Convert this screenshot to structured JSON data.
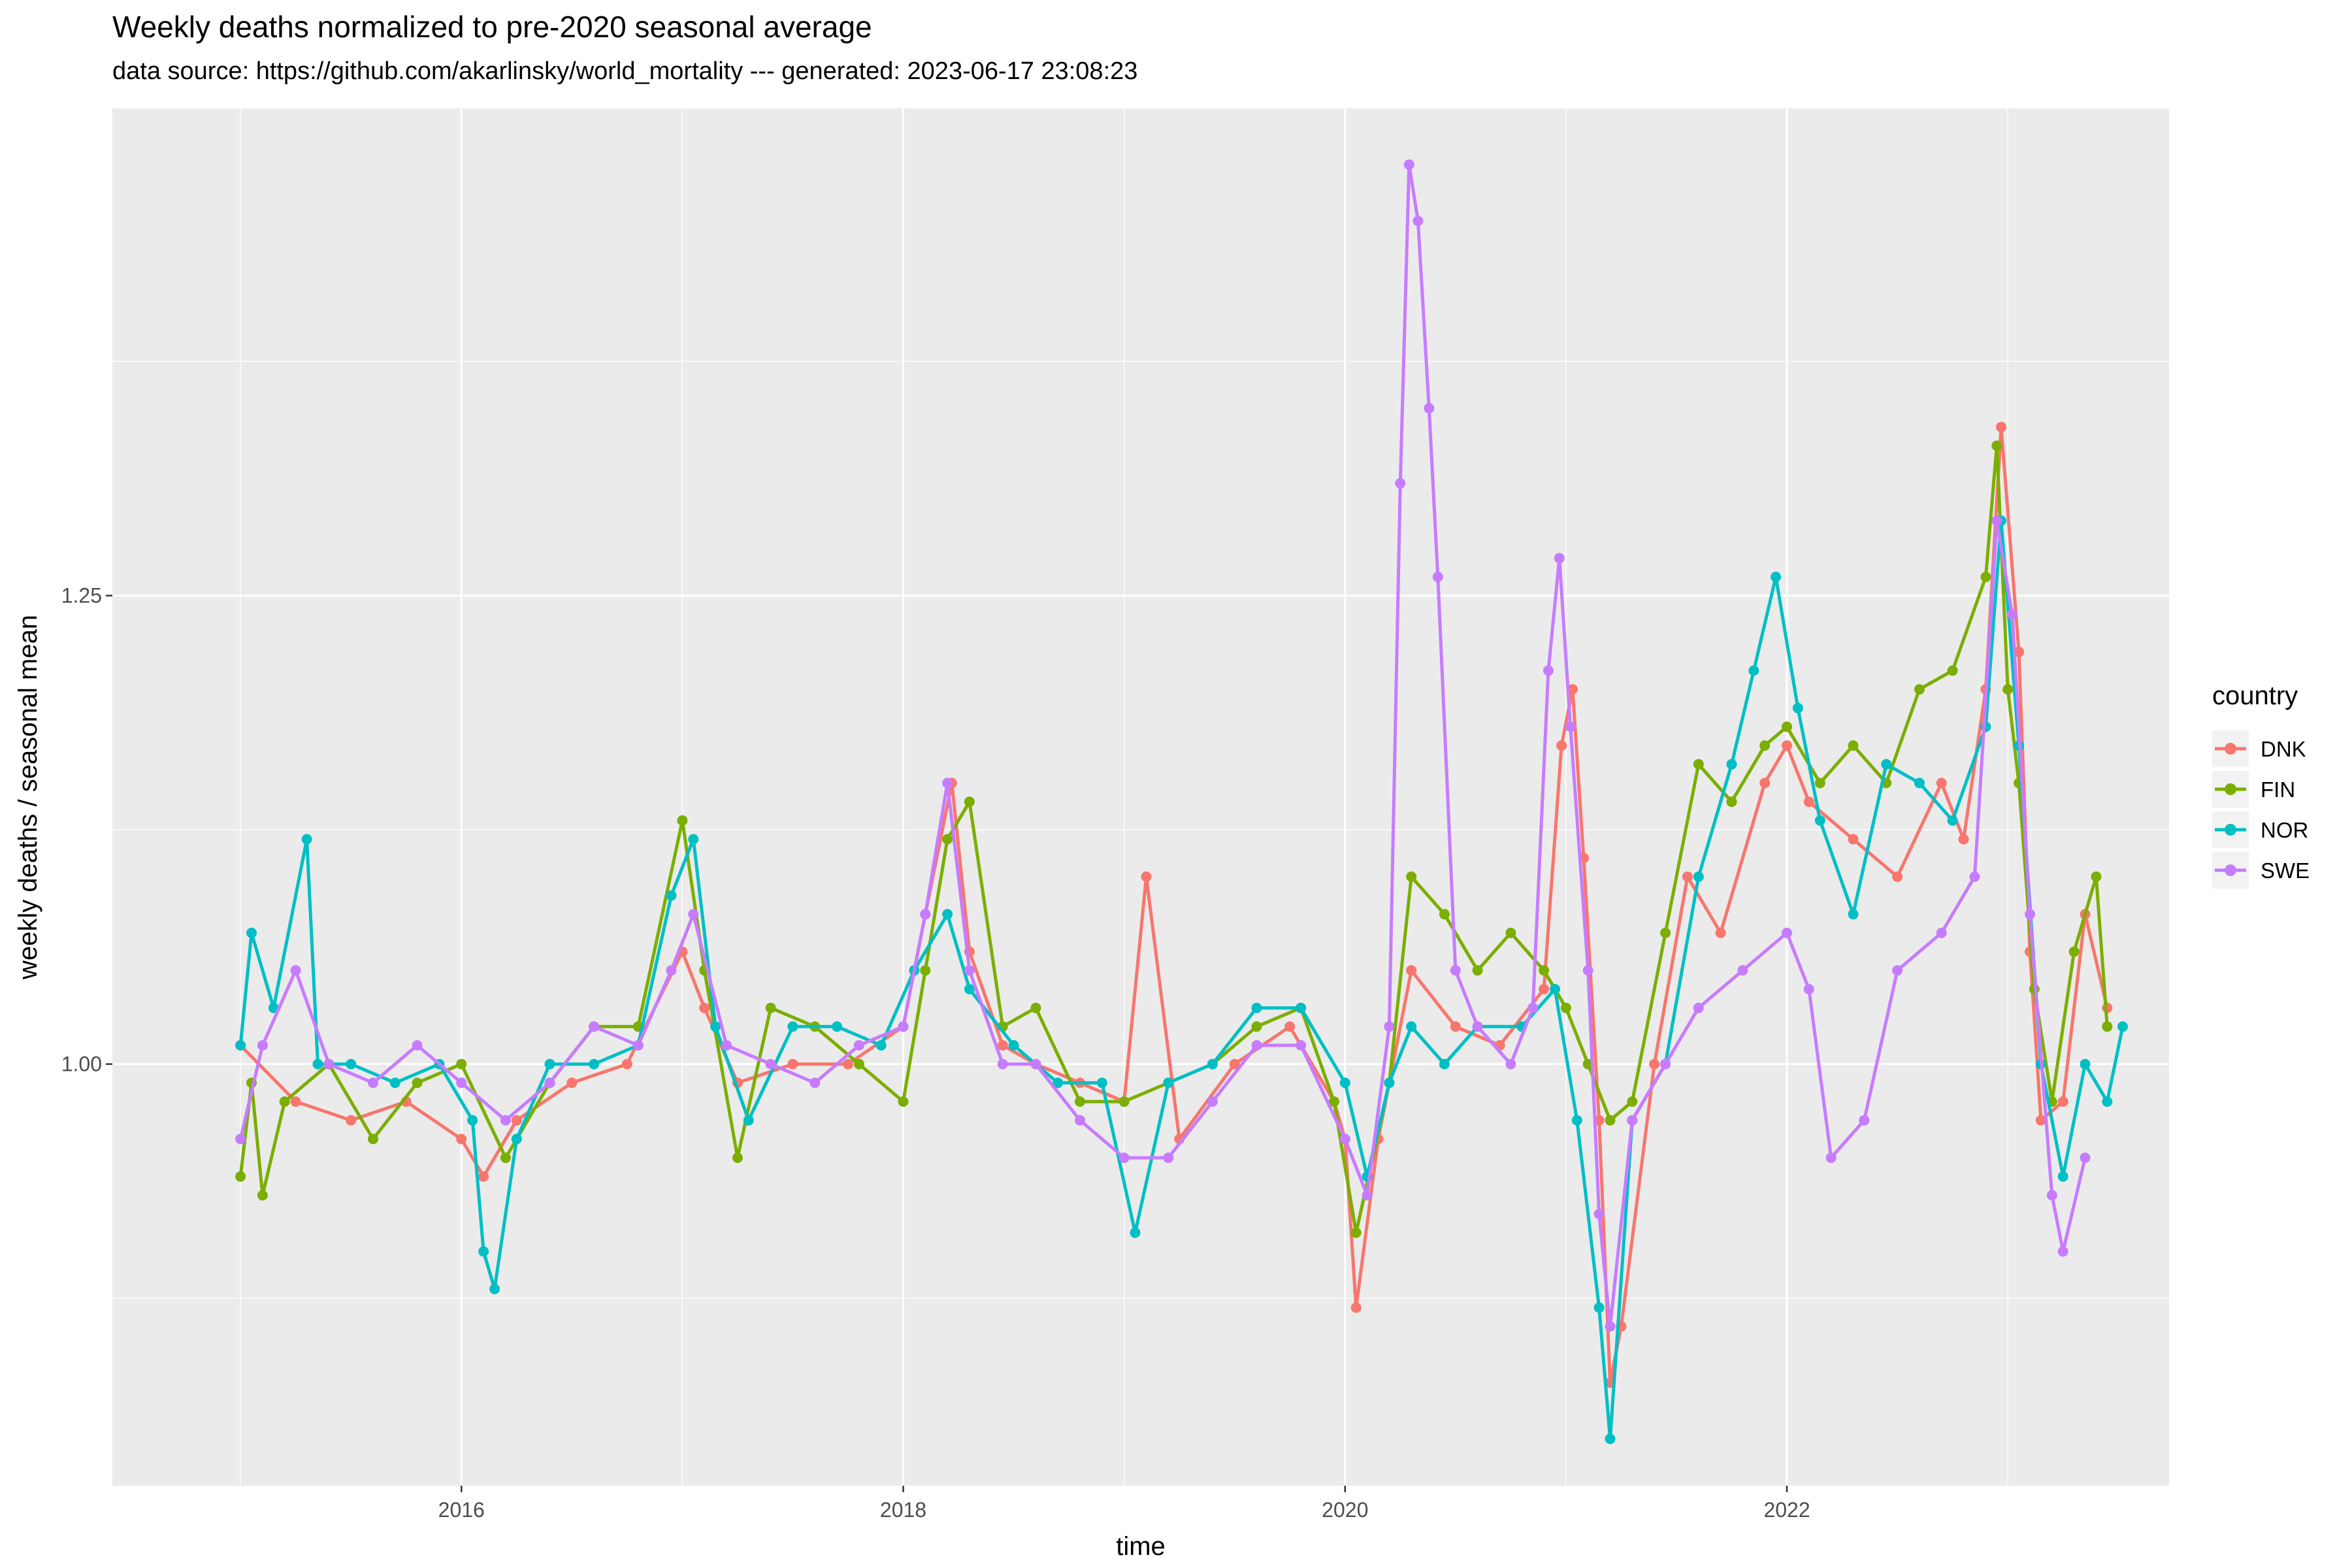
{
  "chart_data": {
    "type": "line",
    "title": "Weekly deaths normalized to pre-2020 seasonal average",
    "subtitle": "data source: https://github.com/akarlinsky/world_mortality --- generated: 2023-06-17 23:08:23",
    "xlabel": "time",
    "ylabel": "weekly deaths / seasonal mean",
    "x_ticks": [
      "2016",
      "2018",
      "2020",
      "2022"
    ],
    "y_ticks": [
      "1.00",
      "1.25"
    ],
    "xlim": [
      2014.42,
      2023.73
    ],
    "ylim": [
      0.775,
      1.51
    ],
    "grid": true,
    "legend": {
      "title": "country",
      "position": "right"
    },
    "colors": {
      "DNK": "#F8766D",
      "FIN": "#7CAE00",
      "NOR": "#00BFC4",
      "SWE": "#C77CFF"
    },
    "series": [
      {
        "name": "DNK",
        "points": [
          [
            2015.0,
            1.01
          ],
          [
            2015.25,
            0.98
          ],
          [
            2015.5,
            0.97
          ],
          [
            2015.75,
            0.98
          ],
          [
            2016.0,
            0.96
          ],
          [
            2016.1,
            0.94
          ],
          [
            2016.25,
            0.97
          ],
          [
            2016.5,
            0.99
          ],
          [
            2016.75,
            1.0
          ],
          [
            2017.0,
            1.06
          ],
          [
            2017.1,
            1.03
          ],
          [
            2017.25,
            0.99
          ],
          [
            2017.5,
            1.0
          ],
          [
            2017.75,
            1.0
          ],
          [
            2018.0,
            1.02
          ],
          [
            2018.1,
            1.08
          ],
          [
            2018.22,
            1.15
          ],
          [
            2018.3,
            1.06
          ],
          [
            2018.45,
            1.01
          ],
          [
            2018.6,
            1.0
          ],
          [
            2018.8,
            0.99
          ],
          [
            2019.0,
            0.98
          ],
          [
            2019.1,
            1.1
          ],
          [
            2019.25,
            0.96
          ],
          [
            2019.5,
            1.0
          ],
          [
            2019.75,
            1.02
          ],
          [
            2019.95,
            0.98
          ],
          [
            2020.0,
            0.96
          ],
          [
            2020.05,
            0.87
          ],
          [
            2020.15,
            0.96
          ],
          [
            2020.3,
            1.05
          ],
          [
            2020.5,
            1.02
          ],
          [
            2020.7,
            1.01
          ],
          [
            2020.9,
            1.04
          ],
          [
            2020.98,
            1.17
          ],
          [
            2021.03,
            1.2
          ],
          [
            2021.08,
            1.11
          ],
          [
            2021.15,
            0.97
          ],
          [
            2021.2,
            0.83
          ],
          [
            2021.25,
            0.86
          ],
          [
            2021.4,
            1.0
          ],
          [
            2021.55,
            1.1
          ],
          [
            2021.7,
            1.07
          ],
          [
            2021.9,
            1.15
          ],
          [
            2022.0,
            1.17
          ],
          [
            2022.1,
            1.14
          ],
          [
            2022.3,
            1.12
          ],
          [
            2022.5,
            1.1
          ],
          [
            2022.7,
            1.15
          ],
          [
            2022.8,
            1.12
          ],
          [
            2022.9,
            1.2
          ],
          [
            2022.97,
            1.34
          ],
          [
            2023.05,
            1.22
          ],
          [
            2023.1,
            1.06
          ],
          [
            2023.15,
            0.97
          ],
          [
            2023.25,
            0.98
          ],
          [
            2023.35,
            1.08
          ],
          [
            2023.45,
            1.03
          ]
        ]
      },
      {
        "name": "FIN",
        "points": [
          [
            2015.0,
            0.94
          ],
          [
            2015.05,
            0.99
          ],
          [
            2015.1,
            0.93
          ],
          [
            2015.2,
            0.98
          ],
          [
            2015.4,
            1.0
          ],
          [
            2015.6,
            0.96
          ],
          [
            2015.8,
            0.99
          ],
          [
            2016.0,
            1.0
          ],
          [
            2016.2,
            0.95
          ],
          [
            2016.4,
            0.99
          ],
          [
            2016.6,
            1.02
          ],
          [
            2016.8,
            1.02
          ],
          [
            2017.0,
            1.13
          ],
          [
            2017.1,
            1.05
          ],
          [
            2017.25,
            0.95
          ],
          [
            2017.4,
            1.03
          ],
          [
            2017.6,
            1.02
          ],
          [
            2017.8,
            1.0
          ],
          [
            2018.0,
            0.98
          ],
          [
            2018.1,
            1.05
          ],
          [
            2018.2,
            1.12
          ],
          [
            2018.3,
            1.14
          ],
          [
            2018.45,
            1.02
          ],
          [
            2018.6,
            1.03
          ],
          [
            2018.8,
            0.98
          ],
          [
            2019.0,
            0.98
          ],
          [
            2019.2,
            0.99
          ],
          [
            2019.4,
            1.0
          ],
          [
            2019.6,
            1.02
          ],
          [
            2019.8,
            1.03
          ],
          [
            2019.95,
            0.98
          ],
          [
            2020.05,
            0.91
          ],
          [
            2020.2,
            0.99
          ],
          [
            2020.3,
            1.1
          ],
          [
            2020.45,
            1.08
          ],
          [
            2020.6,
            1.05
          ],
          [
            2020.75,
            1.07
          ],
          [
            2020.9,
            1.05
          ],
          [
            2021.0,
            1.03
          ],
          [
            2021.1,
            1.0
          ],
          [
            2021.2,
            0.97
          ],
          [
            2021.3,
            0.98
          ],
          [
            2021.45,
            1.07
          ],
          [
            2021.6,
            1.16
          ],
          [
            2021.75,
            1.14
          ],
          [
            2021.9,
            1.17
          ],
          [
            2022.0,
            1.18
          ],
          [
            2022.15,
            1.15
          ],
          [
            2022.3,
            1.17
          ],
          [
            2022.45,
            1.15
          ],
          [
            2022.6,
            1.2
          ],
          [
            2022.75,
            1.21
          ],
          [
            2022.9,
            1.26
          ],
          [
            2022.95,
            1.33
          ],
          [
            2023.0,
            1.2
          ],
          [
            2023.05,
            1.15
          ],
          [
            2023.12,
            1.04
          ],
          [
            2023.2,
            0.98
          ],
          [
            2023.3,
            1.06
          ],
          [
            2023.4,
            1.1
          ],
          [
            2023.45,
            1.02
          ]
        ]
      },
      {
        "name": "NOR",
        "points": [
          [
            2015.0,
            1.01
          ],
          [
            2015.05,
            1.07
          ],
          [
            2015.15,
            1.03
          ],
          [
            2015.3,
            1.12
          ],
          [
            2015.35,
            1.0
          ],
          [
            2015.5,
            1.0
          ],
          [
            2015.7,
            0.99
          ],
          [
            2015.9,
            1.0
          ],
          [
            2016.05,
            0.97
          ],
          [
            2016.1,
            0.9
          ],
          [
            2016.15,
            0.88
          ],
          [
            2016.25,
            0.96
          ],
          [
            2016.4,
            1.0
          ],
          [
            2016.6,
            1.0
          ],
          [
            2016.8,
            1.01
          ],
          [
            2016.95,
            1.09
          ],
          [
            2017.05,
            1.12
          ],
          [
            2017.15,
            1.02
          ],
          [
            2017.3,
            0.97
          ],
          [
            2017.5,
            1.02
          ],
          [
            2017.7,
            1.02
          ],
          [
            2017.9,
            1.01
          ],
          [
            2018.05,
            1.05
          ],
          [
            2018.2,
            1.08
          ],
          [
            2018.3,
            1.04
          ],
          [
            2018.5,
            1.01
          ],
          [
            2018.7,
            0.99
          ],
          [
            2018.9,
            0.99
          ],
          [
            2019.05,
            0.91
          ],
          [
            2019.2,
            0.99
          ],
          [
            2019.4,
            1.0
          ],
          [
            2019.6,
            1.03
          ],
          [
            2019.8,
            1.03
          ],
          [
            2020.0,
            0.99
          ],
          [
            2020.1,
            0.94
          ],
          [
            2020.2,
            0.99
          ],
          [
            2020.3,
            1.02
          ],
          [
            2020.45,
            1.0
          ],
          [
            2020.6,
            1.02
          ],
          [
            2020.8,
            1.02
          ],
          [
            2020.95,
            1.04
          ],
          [
            2021.05,
            0.97
          ],
          [
            2021.15,
            0.87
          ],
          [
            2021.2,
            0.8
          ],
          [
            2021.3,
            0.97
          ],
          [
            2021.45,
            1.0
          ],
          [
            2021.6,
            1.1
          ],
          [
            2021.75,
            1.16
          ],
          [
            2021.85,
            1.21
          ],
          [
            2021.95,
            1.26
          ],
          [
            2022.05,
            1.19
          ],
          [
            2022.15,
            1.13
          ],
          [
            2022.3,
            1.08
          ],
          [
            2022.45,
            1.16
          ],
          [
            2022.6,
            1.15
          ],
          [
            2022.75,
            1.13
          ],
          [
            2022.9,
            1.18
          ],
          [
            2022.97,
            1.29
          ],
          [
            2023.05,
            1.17
          ],
          [
            2023.15,
            1.0
          ],
          [
            2023.25,
            0.94
          ],
          [
            2023.35,
            1.0
          ],
          [
            2023.45,
            0.98
          ],
          [
            2023.52,
            1.02
          ]
        ]
      },
      {
        "name": "SWE",
        "points": [
          [
            2015.0,
            0.96
          ],
          [
            2015.1,
            1.01
          ],
          [
            2015.25,
            1.05
          ],
          [
            2015.4,
            1.0
          ],
          [
            2015.6,
            0.99
          ],
          [
            2015.8,
            1.01
          ],
          [
            2016.0,
            0.99
          ],
          [
            2016.2,
            0.97
          ],
          [
            2016.4,
            0.99
          ],
          [
            2016.6,
            1.02
          ],
          [
            2016.8,
            1.01
          ],
          [
            2016.95,
            1.05
          ],
          [
            2017.05,
            1.08
          ],
          [
            2017.2,
            1.01
          ],
          [
            2017.4,
            1.0
          ],
          [
            2017.6,
            0.99
          ],
          [
            2017.8,
            1.01
          ],
          [
            2018.0,
            1.02
          ],
          [
            2018.1,
            1.08
          ],
          [
            2018.2,
            1.15
          ],
          [
            2018.3,
            1.05
          ],
          [
            2018.45,
            1.0
          ],
          [
            2018.6,
            1.0
          ],
          [
            2018.8,
            0.97
          ],
          [
            2019.0,
            0.95
          ],
          [
            2019.2,
            0.95
          ],
          [
            2019.4,
            0.98
          ],
          [
            2019.6,
            1.01
          ],
          [
            2019.8,
            1.01
          ],
          [
            2020.0,
            0.96
          ],
          [
            2020.1,
            0.93
          ],
          [
            2020.2,
            1.02
          ],
          [
            2020.25,
            1.31
          ],
          [
            2020.29,
            1.48
          ],
          [
            2020.33,
            1.45
          ],
          [
            2020.38,
            1.35
          ],
          [
            2020.42,
            1.26
          ],
          [
            2020.5,
            1.05
          ],
          [
            2020.6,
            1.02
          ],
          [
            2020.75,
            1.0
          ],
          [
            2020.85,
            1.03
          ],
          [
            2020.92,
            1.21
          ],
          [
            2020.97,
            1.27
          ],
          [
            2021.02,
            1.18
          ],
          [
            2021.1,
            1.05
          ],
          [
            2021.15,
            0.92
          ],
          [
            2021.2,
            0.86
          ],
          [
            2021.3,
            0.97
          ],
          [
            2021.45,
            1.0
          ],
          [
            2021.6,
            1.03
          ],
          [
            2021.8,
            1.05
          ],
          [
            2022.0,
            1.07
          ],
          [
            2022.1,
            1.04
          ],
          [
            2022.2,
            0.95
          ],
          [
            2022.35,
            0.97
          ],
          [
            2022.5,
            1.05
          ],
          [
            2022.7,
            1.07
          ],
          [
            2022.85,
            1.1
          ],
          [
            2022.95,
            1.29
          ],
          [
            2023.02,
            1.24
          ],
          [
            2023.1,
            1.08
          ],
          [
            2023.2,
            0.93
          ],
          [
            2023.25,
            0.9
          ],
          [
            2023.35,
            0.95
          ]
        ]
      }
    ]
  }
}
